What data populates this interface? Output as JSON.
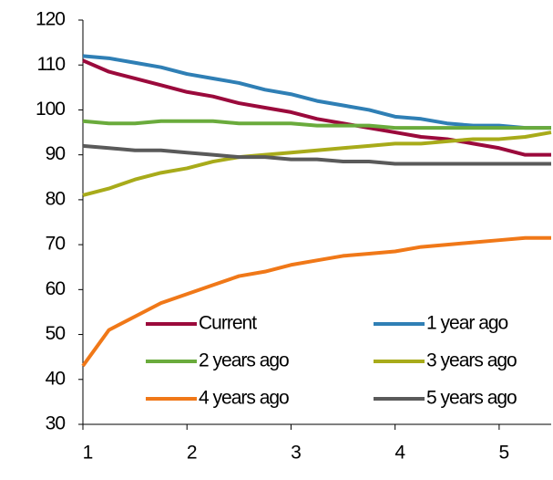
{
  "chart_data": {
    "type": "line",
    "x": [
      1,
      1.25,
      1.5,
      1.75,
      2,
      2.25,
      2.5,
      2.75,
      3,
      3.25,
      3.5,
      3.75,
      4,
      4.25,
      4.5,
      4.75,
      5,
      5.25,
      5.5
    ],
    "series": [
      {
        "name": "Current",
        "color": "#9b0a3c",
        "values": [
          111,
          108.5,
          107,
          105.5,
          104,
          103,
          101.5,
          100.5,
          99.5,
          98,
          97,
          96,
          95,
          94,
          93.5,
          92.5,
          91.5,
          90,
          90
        ]
      },
      {
        "name": "1 year ago",
        "color": "#2f7fb5",
        "values": [
          112,
          111.5,
          110.5,
          109.5,
          108,
          107,
          106,
          104.5,
          103.5,
          102,
          101,
          100,
          98.5,
          98,
          97,
          96.5,
          96.5,
          96,
          96
        ]
      },
      {
        "name": "2 years ago",
        "color": "#6aab3c",
        "values": [
          97.5,
          97,
          97,
          97.5,
          97.5,
          97.5,
          97,
          97,
          97,
          96.5,
          96.5,
          96.5,
          96,
          96,
          96,
          96,
          96,
          96,
          96
        ]
      },
      {
        "name": "3 years ago",
        "color": "#a8ab1a",
        "values": [
          81,
          82.5,
          84.5,
          86,
          87,
          88.5,
          89.5,
          90,
          90.5,
          91,
          91.5,
          92,
          92.5,
          92.5,
          93,
          93.5,
          93.5,
          94,
          95
        ]
      },
      {
        "name": "4 years ago",
        "color": "#f07818",
        "values": [
          43,
          51,
          54,
          57,
          59,
          61,
          63,
          64,
          65.5,
          66.5,
          67.5,
          68,
          68.5,
          69.5,
          70,
          70.5,
          71,
          71.5,
          71.5
        ]
      },
      {
        "name": "5 years ago",
        "color": "#5a5a5a",
        "values": [
          92,
          91.5,
          91,
          91,
          90.5,
          90,
          89.5,
          89.5,
          89,
          89,
          88.5,
          88.5,
          88,
          88,
          88,
          88,
          88,
          88,
          88
        ]
      }
    ],
    "xlim": [
      1,
      5.5
    ],
    "xticks": [
      1,
      2,
      3,
      4,
      5
    ],
    "ylim": [
      30,
      120
    ],
    "yticks": [
      30,
      40,
      50,
      60,
      70,
      80,
      90,
      100,
      110,
      120
    ]
  }
}
